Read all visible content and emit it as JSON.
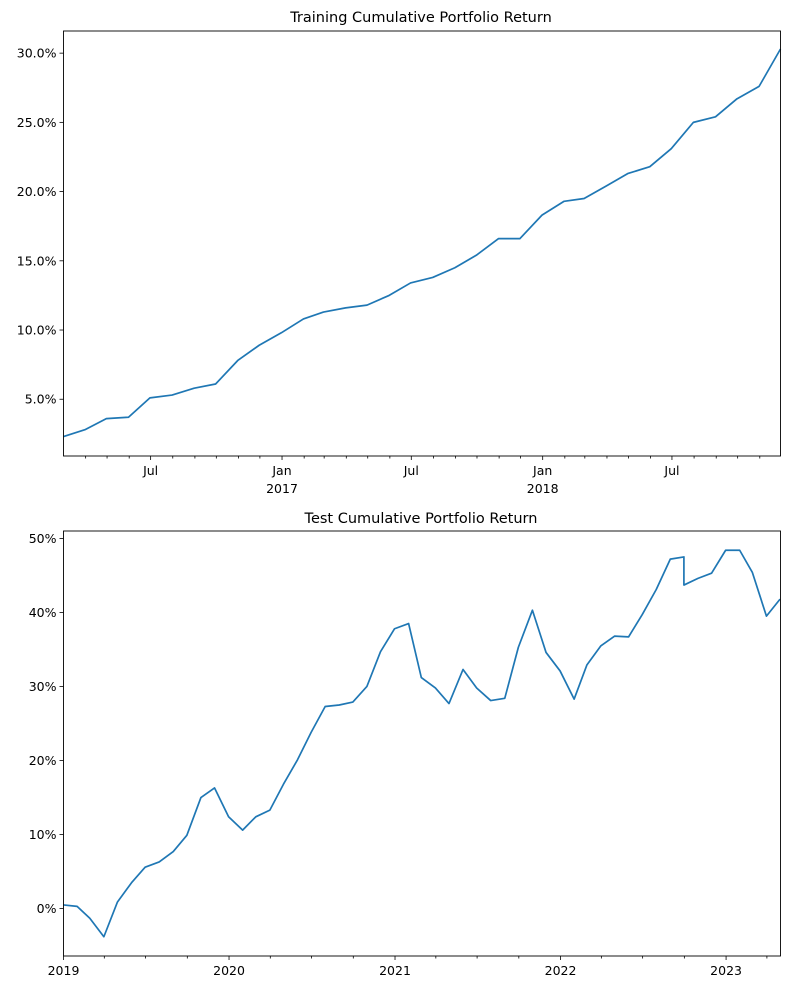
{
  "chart_data": [
    {
      "type": "line",
      "title": "Training Cumulative Portfolio Return",
      "xlabel": "",
      "ylabel": "",
      "xlim": [
        "2016-03-01",
        "2018-11-30"
      ],
      "ylim": [
        0.009,
        0.316
      ],
      "y_ticks": [
        {
          "value": 0.05,
          "label": "5.0%"
        },
        {
          "value": 0.1,
          "label": "10.0%"
        },
        {
          "value": 0.15,
          "label": "15.0%"
        },
        {
          "value": 0.2,
          "label": "20.0%"
        },
        {
          "value": 0.25,
          "label": "25.0%"
        },
        {
          "value": 0.3,
          "label": "30.0%"
        }
      ],
      "x_major_ticks": [
        {
          "date": "2016-07-01",
          "label": "Jul",
          "sub": ""
        },
        {
          "date": "2017-01-01",
          "label": "Jan",
          "sub": "2017"
        },
        {
          "date": "2017-07-01",
          "label": "Jul",
          "sub": ""
        },
        {
          "date": "2018-01-01",
          "label": "Jan",
          "sub": "2018"
        },
        {
          "date": "2018-07-01",
          "label": "Jul",
          "sub": ""
        }
      ],
      "x_minor_ticks": [
        "2016-04-01",
        "2016-05-01",
        "2016-06-01",
        "2016-08-01",
        "2016-09-01",
        "2016-10-01",
        "2016-11-01",
        "2016-12-01",
        "2017-02-01",
        "2017-03-01",
        "2017-04-01",
        "2017-05-01",
        "2017-06-01",
        "2017-08-01",
        "2017-09-01",
        "2017-10-01",
        "2017-11-01",
        "2017-12-01",
        "2018-02-01",
        "2018-03-01",
        "2018-04-01",
        "2018-05-01",
        "2018-06-01",
        "2018-08-01",
        "2018-09-01",
        "2018-10-01",
        "2018-11-01"
      ],
      "grid": false,
      "series": [
        {
          "name": "",
          "color": "#1f77b4",
          "x": [
            "2016-03-01",
            "2016-03-31",
            "2016-04-30",
            "2016-05-31",
            "2016-06-30",
            "2016-07-31",
            "2016-08-31",
            "2016-09-30",
            "2016-10-31",
            "2016-11-30",
            "2016-12-31",
            "2017-01-31",
            "2017-02-28",
            "2017-03-31",
            "2017-04-30",
            "2017-05-31",
            "2017-06-30",
            "2017-07-31",
            "2017-08-31",
            "2017-09-30",
            "2017-10-31",
            "2017-11-30",
            "2017-12-31",
            "2018-01-31",
            "2018-02-28",
            "2018-03-31",
            "2018-04-30",
            "2018-05-31",
            "2018-06-30",
            "2018-07-31",
            "2018-08-31",
            "2018-09-30",
            "2018-10-31",
            "2018-11-30"
          ],
          "y": [
            0.023,
            0.028,
            0.036,
            0.037,
            0.051,
            0.053,
            0.058,
            0.061,
            0.078,
            0.089,
            0.098,
            0.108,
            0.113,
            0.116,
            0.118,
            0.125,
            0.134,
            0.138,
            0.145,
            0.154,
            0.166,
            0.166,
            0.183,
            0.193,
            0.195,
            0.204,
            0.213,
            0.218,
            0.231,
            0.25,
            0.254,
            0.267,
            0.276,
            0.303
          ]
        }
      ]
    },
    {
      "type": "line",
      "title": "Test Cumulative Portfolio Return",
      "xlabel": "",
      "ylabel": "",
      "xlim": [
        "2019-01-01",
        "2023-05-01"
      ],
      "ylim": [
        -0.064,
        0.51
      ],
      "y_ticks": [
        {
          "value": 0.0,
          "label": "0%"
        },
        {
          "value": 0.1,
          "label": "10%"
        },
        {
          "value": 0.2,
          "label": "20%"
        },
        {
          "value": 0.3,
          "label": "30%"
        },
        {
          "value": 0.4,
          "label": "40%"
        },
        {
          "value": 0.5,
          "label": "50%"
        }
      ],
      "x_major_ticks": [
        {
          "date": "2019-01-01",
          "label": "2019",
          "sub": ""
        },
        {
          "date": "2020-01-01",
          "label": "2020",
          "sub": ""
        },
        {
          "date": "2021-01-01",
          "label": "2021",
          "sub": ""
        },
        {
          "date": "2022-01-01",
          "label": "2022",
          "sub": ""
        },
        {
          "date": "2023-01-01",
          "label": "2023",
          "sub": ""
        }
      ],
      "x_minor_ticks": [
        "2019-04-01",
        "2019-07-01",
        "2019-10-01",
        "2020-04-01",
        "2020-07-01",
        "2020-10-01",
        "2021-04-01",
        "2021-07-01",
        "2021-10-01",
        "2022-04-01",
        "2022-07-01",
        "2022-10-01",
        "2023-04-01"
      ],
      "grid": false,
      "series": [
        {
          "name": "",
          "color": "#1f77b4",
          "x": [
            "2019-01-01",
            "2019-01-31",
            "2019-02-28",
            "2019-03-31",
            "2019-04-30",
            "2019-05-31",
            "2019-06-30",
            "2019-07-31",
            "2019-08-31",
            "2019-09-30",
            "2019-10-31",
            "2019-11-30",
            "2019-12-31",
            "2020-01-31",
            "2020-02-29",
            "2020-03-31",
            "2020-04-30",
            "2020-05-31",
            "2020-06-30",
            "2020-07-31",
            "2020-08-31",
            "2020-09-30",
            "2020-10-31",
            "2020-11-30",
            "2020-12-31",
            "2021-01-31",
            "2021-02-28",
            "2021-03-31",
            "2021-04-30",
            "2021-05-31",
            "2021-06-30",
            "2021-07-31",
            "2021-08-31",
            "2021-09-30",
            "2021-10-31",
            "2021-11-30",
            "2021-12-31",
            "2022-01-31",
            "2022-02-28",
            "2022-03-31",
            "2022-04-30",
            "2022-05-31",
            "2022-06-30",
            "2022-07-31",
            "2022-08-31",
            "2022-09-30",
            "2022-09-30",
            "2022-10-31",
            "2022-11-30",
            "2022-12-31",
            "2023-01-31",
            "2023-02-28",
            "2023-03-31",
            "2023-04-30"
          ],
          "y": [
            0.005,
            0.003,
            -0.013,
            -0.038,
            0.009,
            0.035,
            0.056,
            0.063,
            0.077,
            0.099,
            0.15,
            0.163,
            0.124,
            0.106,
            0.124,
            0.133,
            0.168,
            0.201,
            0.238,
            0.273,
            0.275,
            0.279,
            0.3,
            0.347,
            0.378,
            0.385,
            0.312,
            0.298,
            0.277,
            0.323,
            0.298,
            0.281,
            0.284,
            0.353,
            0.403,
            0.346,
            0.321,
            0.283,
            0.329,
            0.355,
            0.368,
            0.367,
            0.397,
            0.431,
            0.472,
            0.475,
            0.437,
            0.446,
            0.453,
            0.484,
            0.484,
            0.454,
            0.395,
            0.418
          ]
        }
      ]
    }
  ]
}
